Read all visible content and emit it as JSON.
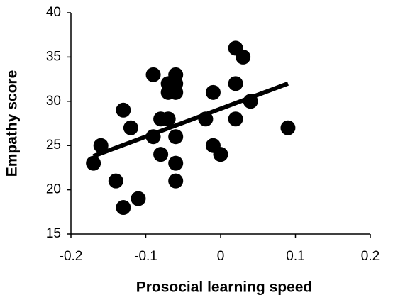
{
  "chart_data": {
    "type": "scatter",
    "x_label": "Prosocial learning speed",
    "y_label": "Empathy score",
    "series": [
      {
        "color": "#000000",
        "x": [
          -0.17,
          -0.16,
          -0.14,
          -0.13,
          -0.13,
          -0.12,
          -0.11,
          -0.09,
          -0.09,
          -0.08,
          -0.08,
          -0.07,
          -0.07,
          -0.07,
          -0.06,
          -0.06,
          -0.06,
          -0.06,
          -0.06,
          -0.06,
          -0.02,
          -0.01,
          -0.01,
          0,
          0.02,
          0.02,
          0.02,
          0.03,
          0.04,
          0.09
        ],
        "values": [
          23,
          25,
          21,
          18,
          29,
          27,
          19,
          33,
          26,
          28,
          24,
          32,
          31,
          28,
          33,
          32,
          31,
          26,
          23,
          21,
          28,
          31,
          25,
          24,
          36,
          32,
          28,
          35,
          30,
          27
        ]
      }
    ],
    "trendline": {
      "color": "#000000",
      "x": [
        -0.17,
        0.09
      ],
      "values": [
        23.8,
        32
      ]
    },
    "xlim": [
      -0.2,
      0.2
    ],
    "xticks": [
      -0.2,
      -0.1,
      0,
      0.1,
      0.2
    ],
    "ylim": [
      15,
      40
    ],
    "yticks": [
      15,
      20,
      25,
      30,
      35,
      40
    ]
  }
}
